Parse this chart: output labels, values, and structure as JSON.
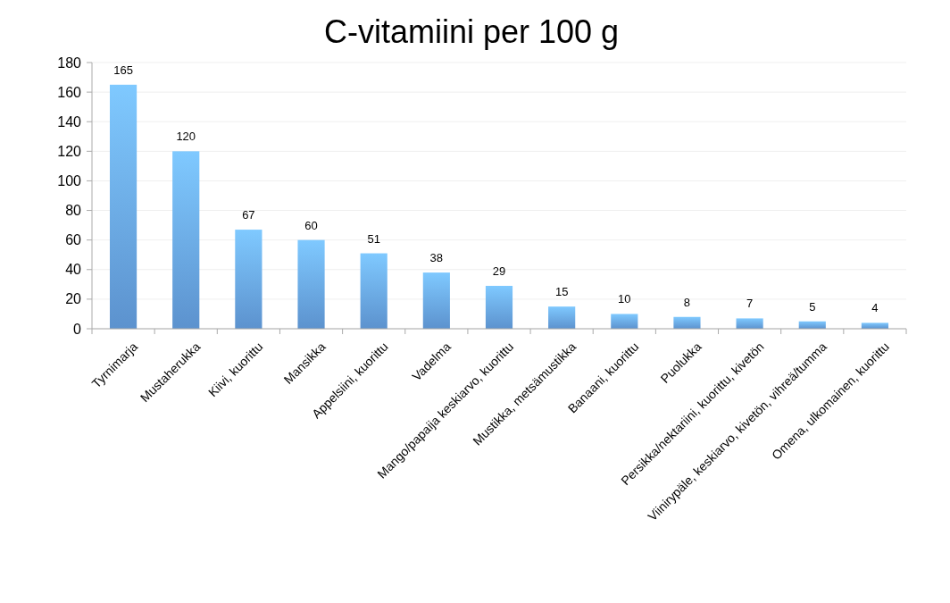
{
  "chart_data": {
    "type": "bar",
    "title": "C-vitamiini per 100 g",
    "categories": [
      "Tyrnimarja",
      "Mustaherukka",
      "Kiivi, kuorittu",
      "Mansikka",
      "Appelsiini, kuorittu",
      "Vadelma",
      "Mango/papaija keskiarvo, kuorittu",
      "Mustikka, metsämustikka",
      "Banaani, kuorittu",
      "Puolukka",
      "Persikka/nektariini, kuorittu, kivetön",
      "Viinirypäle, keskiarvo, kivetön, vihreä/tumma",
      "Omena, ulkomainen, kuorittu"
    ],
    "values": [
      165,
      120,
      67,
      60,
      51,
      38,
      29,
      15,
      10,
      8,
      7,
      5,
      4
    ],
    "color": "#6aa8ee",
    "ylim": [
      0,
      180
    ],
    "yticks": [
      0,
      20,
      40,
      60,
      80,
      100,
      120,
      140,
      160,
      180
    ],
    "grid": "y",
    "data_labels": true
  }
}
